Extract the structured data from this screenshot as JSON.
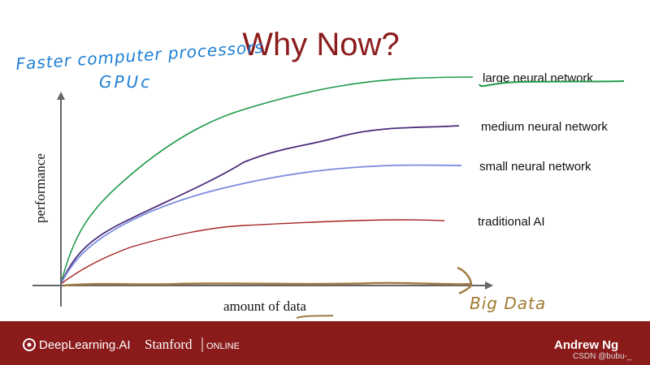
{
  "slide": {
    "title": "Why Now?",
    "annotations": {
      "processors": "Faster computer processors",
      "gpus": "GPUc",
      "big_data": "Big Data"
    },
    "axes": {
      "y_label": "performance",
      "x_label_prefix": "amount of",
      "x_label_emph": "data"
    },
    "curves": [
      {
        "label": "large neural network"
      },
      {
        "label": "medium neural network"
      },
      {
        "label": "small neural network"
      },
      {
        "label": "traditional AI"
      }
    ],
    "footer": {
      "brand": "DeepLearning.AI",
      "partner": "Stanford",
      "partner_sub": "ONLINE",
      "instructor": "Andrew Ng",
      "watermark": "CSDN @bubu-_"
    }
  }
}
